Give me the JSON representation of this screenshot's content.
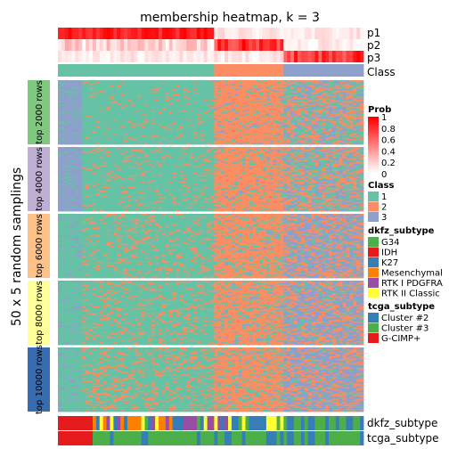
{
  "chart_data": {
    "type": "heatmap",
    "title": "membership heatmap, k = 3",
    "ylabel": "50 x 5 random samplings",
    "row_groups": [
      "top 2000 rows",
      "top 4000 rows",
      "top 6000 rows",
      "top 8000 rows",
      "top 10000 rows"
    ],
    "row_group_colors": [
      "#7fc97f",
      "#beaed4",
      "#fdc086",
      "#ffff99",
      "#386cb0"
    ],
    "top_annotations": [
      "p1",
      "p2",
      "p3",
      "Class"
    ],
    "bottom_annotations": [
      "dkfz_subtype",
      "tcga_subtype"
    ],
    "sample_count": 88,
    "class_counts": [
      45,
      20,
      23
    ],
    "legends": [
      {
        "title": "Prob",
        "type": "continuous",
        "min": 0,
        "max": 1,
        "ticks": [
          "1",
          "0.8",
          "0.6",
          "0.4",
          "0.2",
          "0"
        ],
        "colors": [
          "#ffffff",
          "#ff0000"
        ]
      },
      {
        "title": "Class",
        "type": "discrete",
        "items": [
          {
            "label": "1",
            "color": "#66c2a5"
          },
          {
            "label": "2",
            "color": "#fc8d62"
          },
          {
            "label": "3",
            "color": "#8da0cb"
          }
        ]
      },
      {
        "title": "dkfz_subtype",
        "type": "discrete",
        "items": [
          {
            "label": "G34",
            "color": "#4daf4a"
          },
          {
            "label": "IDH",
            "color": "#e41a1c"
          },
          {
            "label": "K27",
            "color": "#377eb8"
          },
          {
            "label": "Mesenchymal",
            "color": "#ff7f00"
          },
          {
            "label": "RTK I PDGFRA",
            "color": "#984ea3"
          },
          {
            "label": "RTK II Classic",
            "color": "#ffff33"
          }
        ]
      },
      {
        "title": "tcga_subtype",
        "type": "discrete",
        "items": [
          {
            "label": "Cluster #2",
            "color": "#377eb8"
          },
          {
            "label": "Cluster #3",
            "color": "#4daf4a"
          },
          {
            "label": "G-CIMP+",
            "color": "#e41a1c"
          }
        ]
      }
    ]
  }
}
